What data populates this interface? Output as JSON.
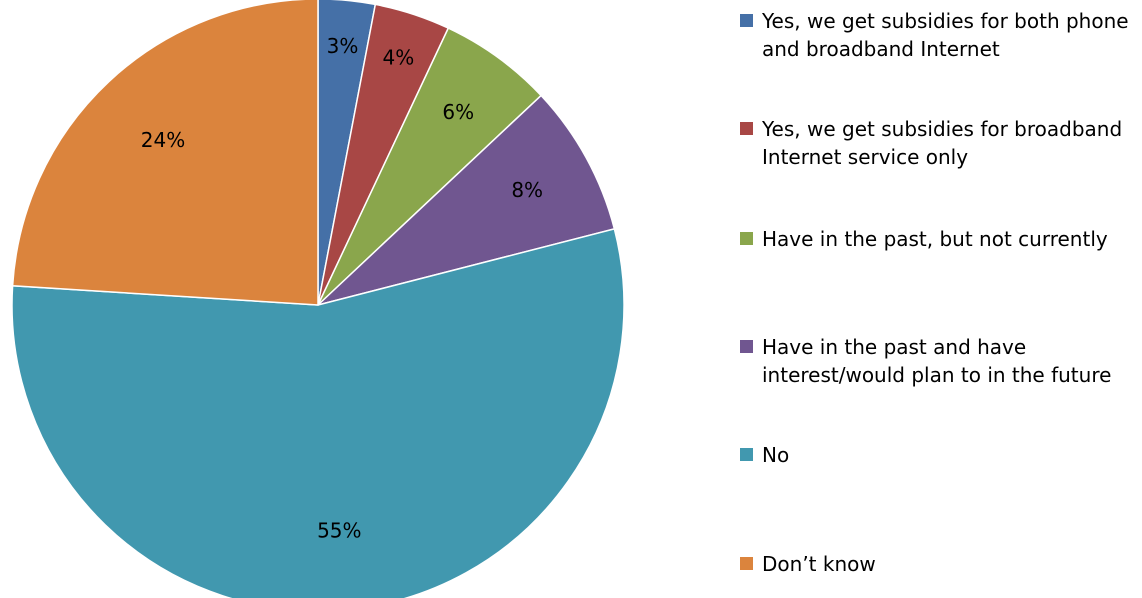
{
  "chart_data": {
    "type": "pie",
    "title": "",
    "legend_position": "right",
    "slices": [
      {
        "label": "Yes, we get subsidies for both phone and broadband Internet",
        "value": 3,
        "display": "3%",
        "color": "#4570A7"
      },
      {
        "label": "Yes, we get subsidies for broadband Internet service only",
        "value": 4,
        "display": "4%",
        "color": "#A84745"
      },
      {
        "label": "Have in the past, but not currently",
        "value": 6,
        "display": "6%",
        "color": "#8AA64C"
      },
      {
        "label": "Have in the past and have interest/would plan to in the future",
        "value": 8,
        "display": "8%",
        "color": "#705690"
      },
      {
        "label": "No",
        "value": 55,
        "display": "55%",
        "color": "#4198AF"
      },
      {
        "label": "Don’t know",
        "value": 24,
        "display": "24%",
        "color": "#DB843D"
      }
    ]
  }
}
